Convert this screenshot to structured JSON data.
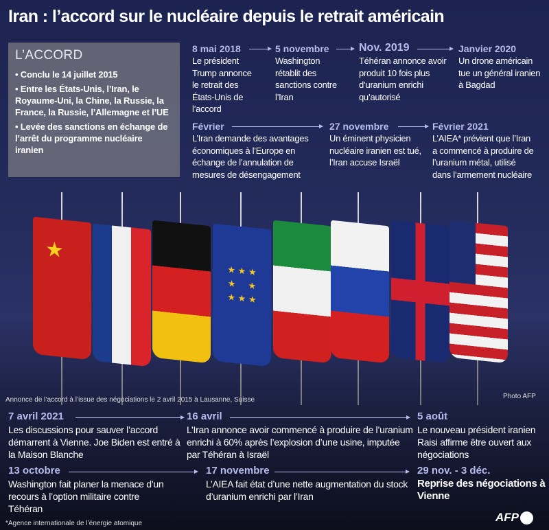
{
  "title": "Iran : l’accord sur le nucléaire depuis le retrait américain",
  "accord": {
    "heading": "L’ACCORD",
    "items": [
      "• Conclu le 14 juillet 2015",
      "• Entre les États-Unis, l’Iran, le Royaume-Uni, la Chine, la Russie, la France, la Russie, l’Allemagne et l’UE",
      "• Levée des sanctions en échange de l’arrêt du programme nucléaire iranien"
    ]
  },
  "top_events": [
    {
      "date": "8 mai 2018",
      "text": "Le président Trump annonce le retrait des États-Unis de l’accord"
    },
    {
      "date": "5 novembre",
      "text": "Washington rétablit des sanctions contre l’Iran"
    },
    {
      "date": "Nov. 2019",
      "text": "Téhéran annonce avoir produit 10 fois plus d’uranium enrichi qu’autorisé"
    },
    {
      "date": "Janvier 2020",
      "text": "Un drone américain tue un général iranien à Bagdad"
    },
    {
      "date": "Février",
      "text": "L’Iran demande des avantages économiques à l’Europe en échange de l’annulation de mesures de désengagement"
    },
    {
      "date": "27 novembre",
      "text": "Un éminent physicien nucléaire iranien est tué, l’Iran accuse Israël"
    },
    {
      "date": "Février 2021",
      "text": "L’AIEA* prévient que l’Iran a commencé à produire de l’uranium métal, utilisé dans l’armement nucléaire"
    }
  ],
  "photo": {
    "caption": "Annonce de l’accord à l’issue des négociations le 2 avril 2015 à Lausanne, Suisse",
    "credit": "Photo AFP",
    "flags": [
      "china",
      "france",
      "germany",
      "eu",
      "iran",
      "russia",
      "uk",
      "usa"
    ]
  },
  "bottom_events": [
    {
      "date": "7 avril 2021",
      "text": "Les discussions pour sauver l’accord démarrent à Vienne. Joe Biden est entré à la Maison Blanche"
    },
    {
      "date": "16 avril",
      "text": "L’Iran annonce avoir commencé à produire de l’uranium enrichi à 60% après l’explosion d’une usine, imputée par Téhéran à Israël"
    },
    {
      "date": "5 août",
      "text": "Le nouveau président iranien Raisi affirme être ouvert aux négociations"
    },
    {
      "date": "13 octobre",
      "text": "Washington fait planer la menace d’un recours à l’option militaire contre Téhéran"
    },
    {
      "date": "17 novembre",
      "text": "L’AIEA fait état d’une nette augmentation du stock d’uranium enrichi par l’Iran"
    },
    {
      "date": "29 nov. - 3 déc.",
      "text": "Reprise des négociations à Vienne"
    }
  ],
  "footnote": "*Agence internationale de l’énergie atomique",
  "logo": "AFP",
  "colors": {
    "date": "#b7bbef",
    "background": "#1c2350"
  }
}
